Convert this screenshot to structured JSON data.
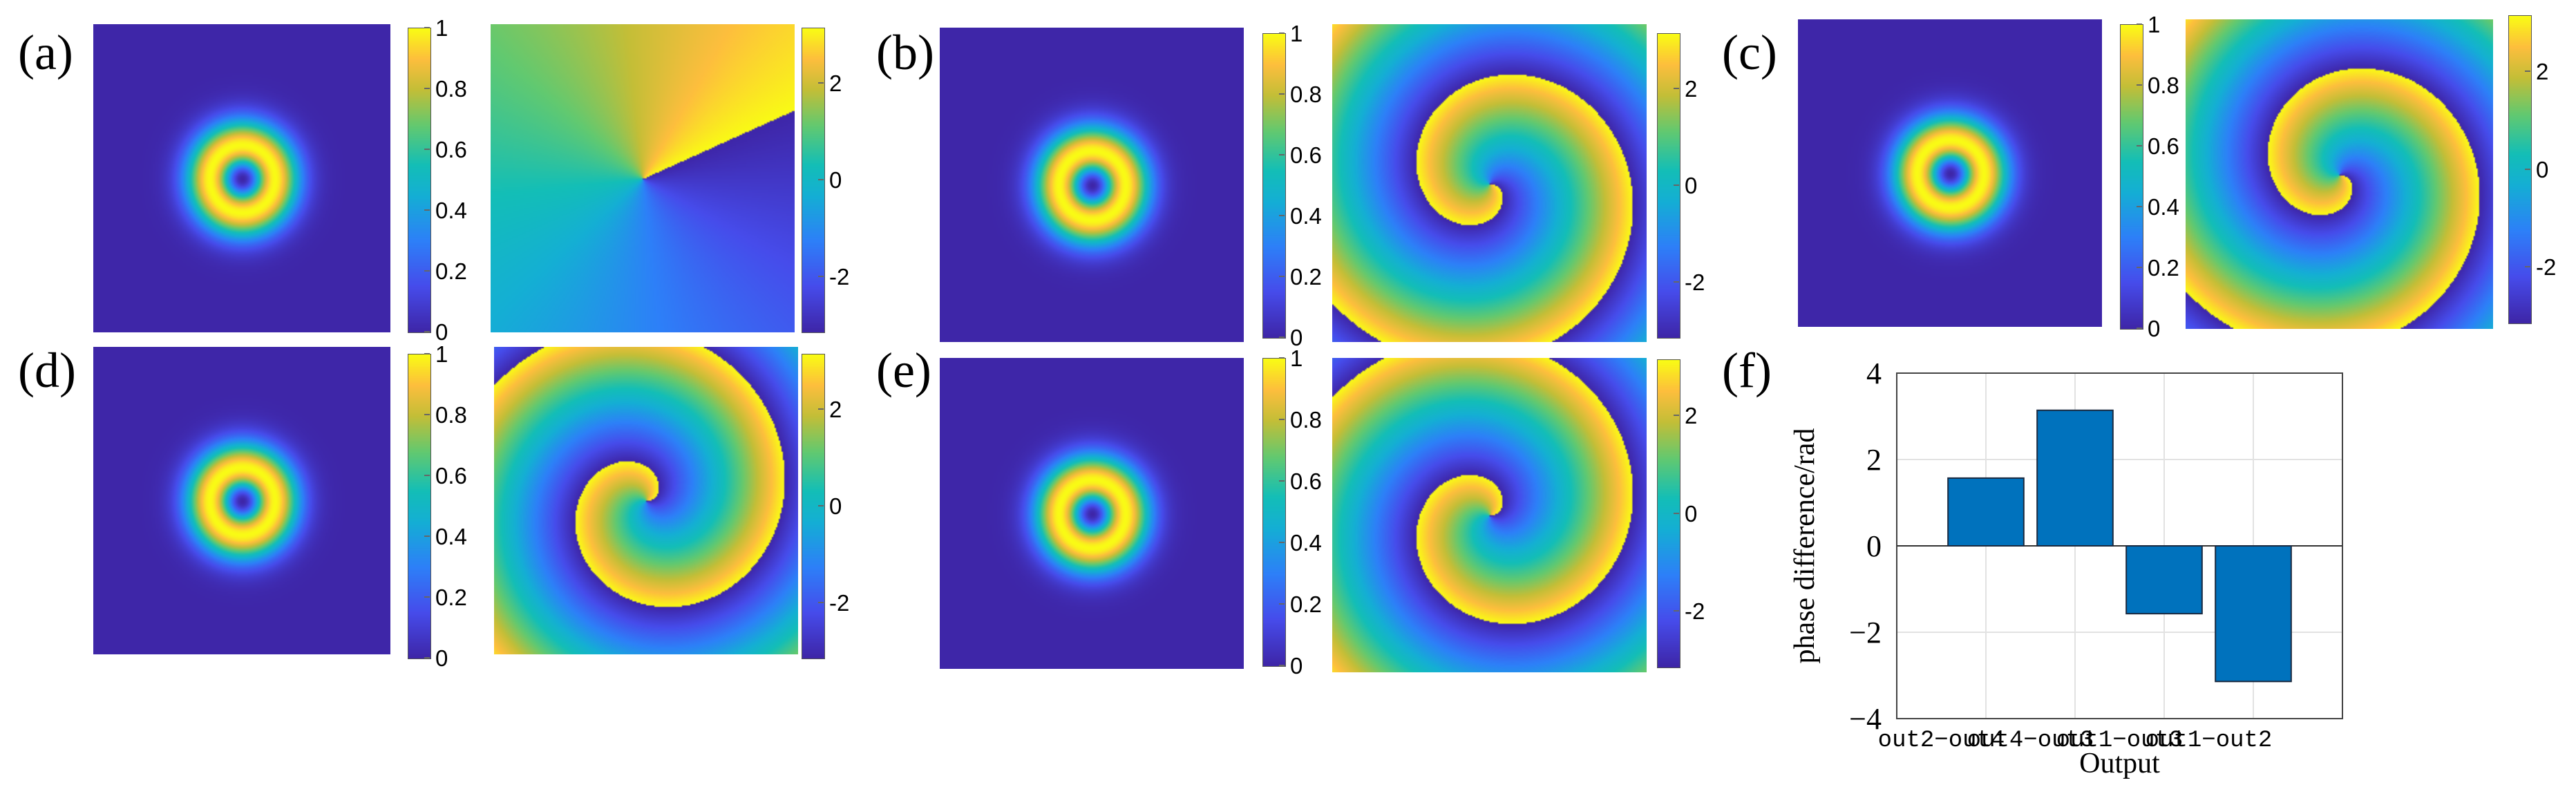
{
  "panels": {
    "a": {
      "label": "(a)",
      "phase_shape": "azimuthal-step"
    },
    "b": {
      "label": "(b)",
      "phase_shape": "spiral-cw"
    },
    "c": {
      "label": "(c)",
      "phase_shape": "spiral-cw"
    },
    "d": {
      "label": "(d)",
      "phase_shape": "spiral-ccw"
    },
    "e": {
      "label": "(e)",
      "phase_shape": "spiral-ccw"
    },
    "f": {
      "label": "(f)"
    }
  },
  "colorbars": {
    "intensity": {
      "range": [
        0,
        1
      ],
      "ticks": [
        "1",
        "0.8",
        "0.6",
        "0.4",
        "0.2",
        "0"
      ]
    },
    "phase": {
      "range": [
        -3.1416,
        3.1416
      ],
      "ticks": [
        "2",
        "0",
        "-2"
      ]
    }
  },
  "colors": {
    "parula_low": "#3e26a8",
    "parula_mid": "#13beb7",
    "parula_high": "#f9fb15",
    "bar": "#0072bd"
  },
  "chart_data": {
    "type": "bar",
    "categories": [
      "out2−out4",
      "out4−out3",
      "out1−out3",
      "out1−out2"
    ],
    "x_centers": [
      "out2−out4",
      "out4−out3",
      "out1−out3",
      "out1−out2"
    ],
    "values": [
      1.57,
      3.14,
      -1.57,
      -3.14
    ],
    "xlabel": "Output",
    "ylabel": "phase difference/rad",
    "ylim": [
      -4,
      4
    ],
    "yticks": [
      "4",
      "2",
      "0",
      "−2",
      "−4"
    ],
    "grid": true
  }
}
